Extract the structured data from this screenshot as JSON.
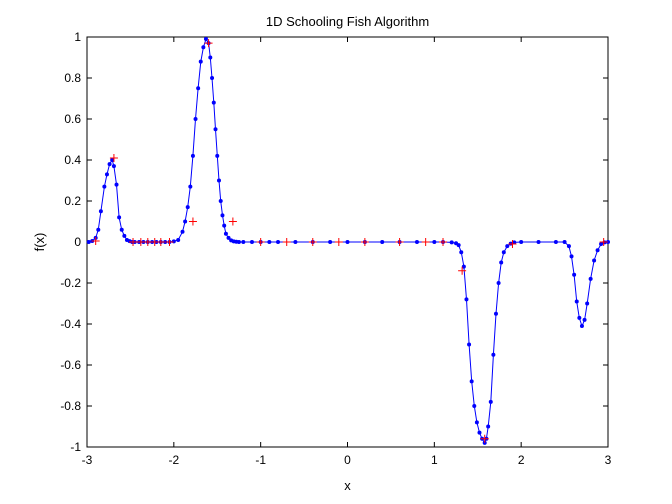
{
  "chart_data": {
    "type": "line",
    "title": "1D Schooling Fish Algorithm",
    "xlabel": "x",
    "ylabel": "f(x)",
    "xlim": [
      -3,
      3
    ],
    "ylim": [
      -1,
      1
    ],
    "xticks": [
      -3,
      -2,
      -1,
      0,
      1,
      2,
      3
    ],
    "yticks": [
      -1,
      -0.8,
      -0.6,
      -0.4,
      -0.2,
      0,
      0.2,
      0.4,
      0.6,
      0.8,
      1
    ],
    "xtick_labels": [
      "-3",
      "-2",
      "-1",
      "0",
      "1",
      "2",
      "3"
    ],
    "ytick_labels": [
      "-1",
      "-0.8",
      "-0.6",
      "-0.4",
      "-0.2",
      "0",
      "0.2",
      "0.4",
      "0.6",
      "0.8",
      "1"
    ],
    "grid": false,
    "legend": "none",
    "series": [
      {
        "marker": "dot",
        "color": "#0000ff",
        "x": [
          -2.98,
          -2.94,
          -2.9,
          -2.87,
          -2.84,
          -2.8,
          -2.77,
          -2.74,
          -2.71,
          -2.69,
          -2.66,
          -2.63,
          -2.6,
          -2.57,
          -2.54,
          -2.51,
          -2.48,
          -2.45,
          -2.4,
          -2.35,
          -2.3,
          -2.25,
          -2.2,
          -2.15,
          -2.1,
          -2.05,
          -2.0,
          -1.95,
          -1.9,
          -1.87,
          -1.84,
          -1.81,
          -1.78,
          -1.75,
          -1.72,
          -1.69,
          -1.66,
          -1.63,
          -1.6,
          -1.58,
          -1.56,
          -1.54,
          -1.52,
          -1.5,
          -1.48,
          -1.46,
          -1.44,
          -1.42,
          -1.4,
          -1.37,
          -1.34,
          -1.31,
          -1.28,
          -1.25,
          -1.2,
          -1.1,
          -1.0,
          -0.9,
          -0.8,
          -0.6,
          -0.4,
          -0.2,
          0.0,
          0.2,
          0.4,
          0.6,
          0.8,
          1.0,
          1.1,
          1.2,
          1.25,
          1.28,
          1.31,
          1.34,
          1.37,
          1.4,
          1.43,
          1.46,
          1.49,
          1.52,
          1.55,
          1.58,
          1.6,
          1.62,
          1.65,
          1.68,
          1.71,
          1.74,
          1.77,
          1.8,
          1.84,
          1.88,
          1.92,
          2.0,
          2.2,
          2.4,
          2.5,
          2.55,
          2.58,
          2.61,
          2.64,
          2.67,
          2.7,
          2.73,
          2.76,
          2.8,
          2.84,
          2.88,
          2.92,
          2.96,
          3.0
        ],
        "y": [
          0.0,
          0.005,
          0.02,
          0.06,
          0.15,
          0.27,
          0.33,
          0.38,
          0.4,
          0.37,
          0.28,
          0.12,
          0.06,
          0.03,
          0.01,
          0.004,
          0.0,
          0.0,
          0.0,
          0.0,
          0.0,
          0.0,
          0.0,
          0.0,
          0.0,
          0.0,
          0.003,
          0.01,
          0.05,
          0.1,
          0.17,
          0.27,
          0.42,
          0.6,
          0.75,
          0.88,
          0.95,
          0.99,
          0.97,
          0.9,
          0.8,
          0.68,
          0.55,
          0.42,
          0.3,
          0.2,
          0.13,
          0.08,
          0.04,
          0.02,
          0.008,
          0.003,
          0.001,
          0.0,
          0.0,
          0.0,
          0.0,
          0.0,
          0.0,
          0.0,
          0.0,
          0.0,
          0.0,
          0.0,
          0.0,
          0.0,
          0.0,
          0.0,
          0.0,
          -0.002,
          -0.006,
          -0.015,
          -0.05,
          -0.12,
          -0.28,
          -0.5,
          -0.68,
          -0.8,
          -0.88,
          -0.93,
          -0.96,
          -0.98,
          -0.96,
          -0.9,
          -0.78,
          -0.55,
          -0.35,
          -0.2,
          -0.1,
          -0.05,
          -0.02,
          -0.008,
          -0.002,
          0.0,
          0.0,
          0.0,
          0.0,
          -0.02,
          -0.07,
          -0.16,
          -0.29,
          -0.37,
          -0.41,
          -0.38,
          -0.3,
          -0.18,
          -0.09,
          -0.04,
          -0.01,
          -0.002,
          0.0
        ]
      },
      {
        "marker": "plus",
        "color": "#ff0000",
        "x": [
          -2.9,
          -2.69,
          -2.47,
          -2.38,
          -2.3,
          -2.22,
          -2.15,
          -2.05,
          -1.78,
          -1.6,
          -1.32,
          -1.0,
          -0.7,
          -0.4,
          -0.1,
          0.2,
          0.6,
          0.9,
          1.1,
          1.32,
          1.58,
          1.9,
          2.95
        ],
        "y": [
          0.005,
          0.41,
          0.0,
          0.0,
          0.0,
          0.0,
          0.0,
          0.0,
          0.1,
          0.97,
          0.1,
          0.0,
          0.0,
          0.0,
          0.0,
          0.0,
          0.0,
          0.0,
          0.0,
          -0.14,
          -0.96,
          -0.01,
          0.0
        ]
      }
    ]
  }
}
